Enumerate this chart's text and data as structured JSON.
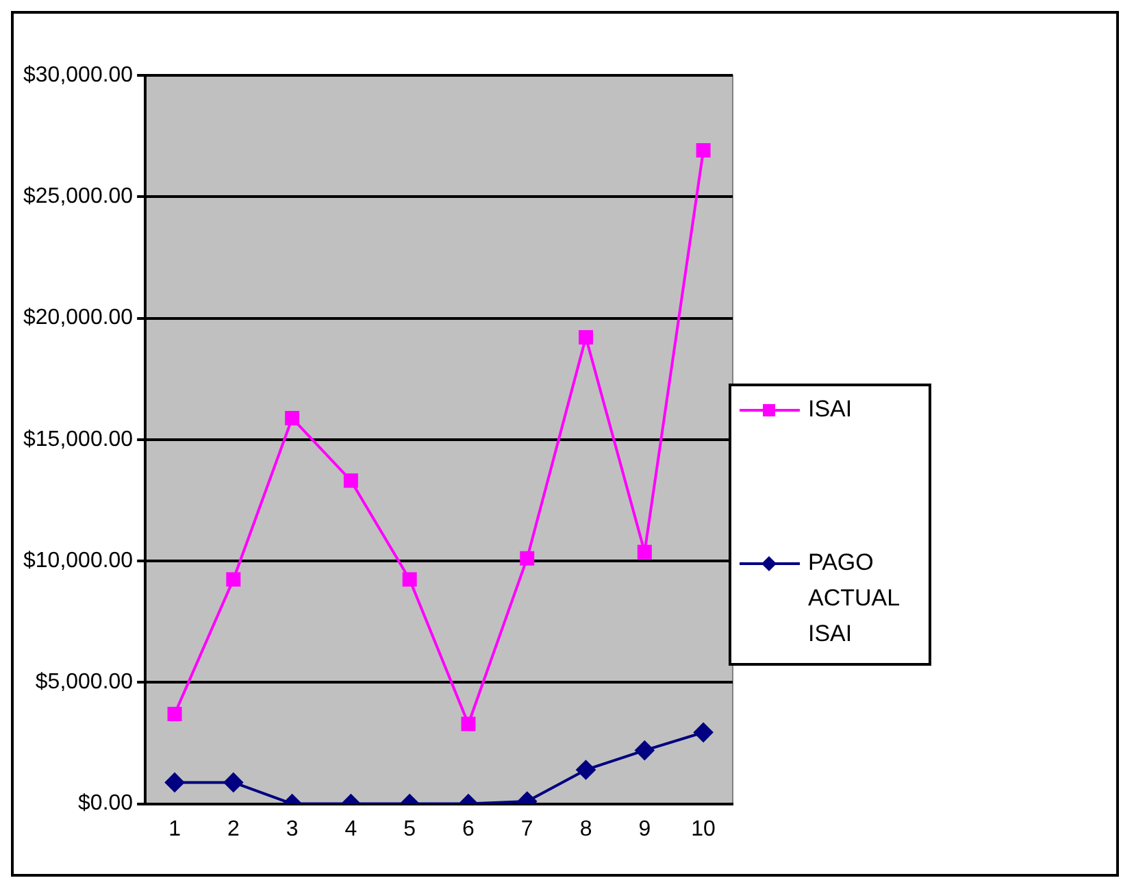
{
  "chart_data": {
    "type": "line",
    "categories": [
      "1",
      "2",
      "3",
      "4",
      "5",
      "6",
      "7",
      "8",
      "9",
      "10"
    ],
    "series": [
      {
        "name": "ISAI",
        "color": "#ff00ff",
        "marker": "square",
        "values": [
          3700,
          9240,
          15880,
          13310,
          9240,
          3290,
          10110,
          19210,
          10370,
          26910
        ]
      },
      {
        "name": "PAGO ACTUAL ISAI",
        "color": "#000080",
        "marker": "diamond",
        "values": [
          880,
          880,
          0,
          0,
          0,
          0,
          100,
          1400,
          2200,
          2940
        ]
      }
    ],
    "ylim": [
      0,
      30000
    ],
    "yticks": [
      {
        "value": 0,
        "label": "$0.00"
      },
      {
        "value": 5000,
        "label": "$5,000.00"
      },
      {
        "value": 10000,
        "label": "$10,000.00"
      },
      {
        "value": 15000,
        "label": "$15,000.00"
      },
      {
        "value": 20000,
        "label": "$20,000.00"
      },
      {
        "value": 25000,
        "label": "$25,000.00"
      },
      {
        "value": 30000,
        "label": "$30,000.00"
      }
    ],
    "grid": "y",
    "legend": "right"
  }
}
